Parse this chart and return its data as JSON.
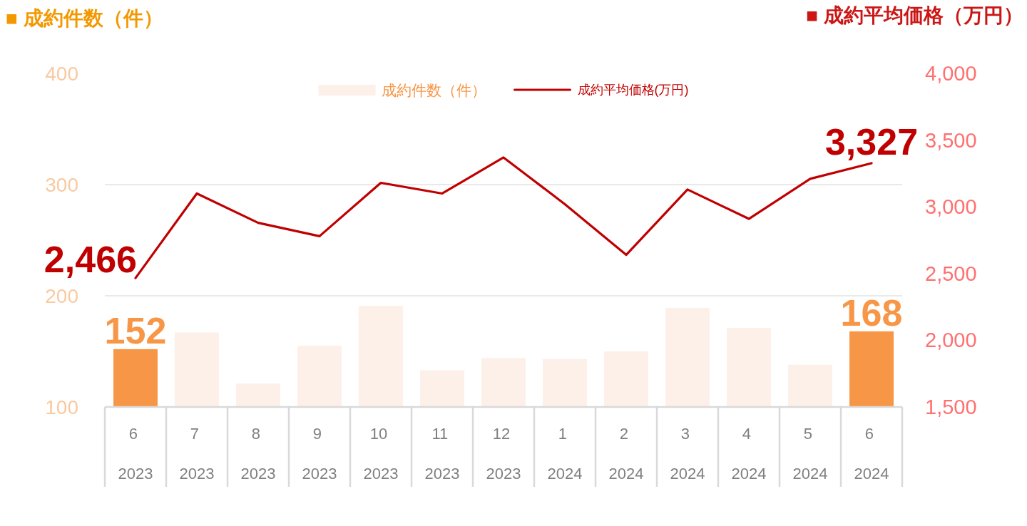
{
  "chart_data": {
    "type": "bar",
    "ylabel": "■ 成約件数（件）",
    "y2label": "■ 成約平均価格（万円）",
    "categories": [
      "6\n2023",
      "7\n2023",
      "8\n2023",
      "9\n2023",
      "10\n2023",
      "11\n2023",
      "12\n2023",
      "1\n2024",
      "2\n2024",
      "3\n2024",
      "4\n2024",
      "5\n2024",
      "6\n2024"
    ],
    "series": [
      {
        "name": "成約件数（件）",
        "color": "#fcf0e8",
        "colors": [
          "#f79646",
          "#fcf0e8",
          "#fcf0e8",
          "#fcf0e8",
          "#fcf0e8",
          "#fcf0e8",
          "#fcf0e8",
          "#fcf0e8",
          "#fcf0e8",
          "#fcf0e8",
          "#fcf0e8",
          "#fcf0e8",
          "#f79646"
        ],
        "values": [
          152,
          167,
          121,
          155,
          191,
          133,
          144,
          143,
          150,
          189,
          171,
          138,
          168
        ],
        "value_labels": [
          "152",
          null,
          null,
          null,
          null,
          null,
          null,
          null,
          null,
          null,
          null,
          null,
          "168"
        ]
      },
      {
        "name": "成約平均価格(万円)",
        "type": "line",
        "axis": "y2",
        "color": "#c00000",
        "values": [
          2466,
          3100,
          2880,
          2780,
          3180,
          3100,
          3370,
          3020,
          2640,
          3130,
          2910,
          3210,
          3327
        ],
        "value_labels": [
          "2,466",
          null,
          null,
          null,
          null,
          null,
          null,
          null,
          null,
          null,
          null,
          null,
          "3,327"
        ]
      }
    ],
    "ylim": [
      100,
      400
    ],
    "yticks": [
      100,
      200,
      300,
      400
    ],
    "y2lim": [
      1500,
      4000
    ],
    "y2ticks": [
      {
        "value": 1500,
        "label": "1,500"
      },
      {
        "value": 2000,
        "label": "2,000"
      },
      {
        "value": 2500,
        "label": "2,500"
      },
      {
        "value": 3000,
        "label": "3,000"
      },
      {
        "value": 3500,
        "label": "3,500"
      },
      {
        "value": 4000,
        "label": "4,000"
      }
    ],
    "grid": "y",
    "legend": "top"
  }
}
